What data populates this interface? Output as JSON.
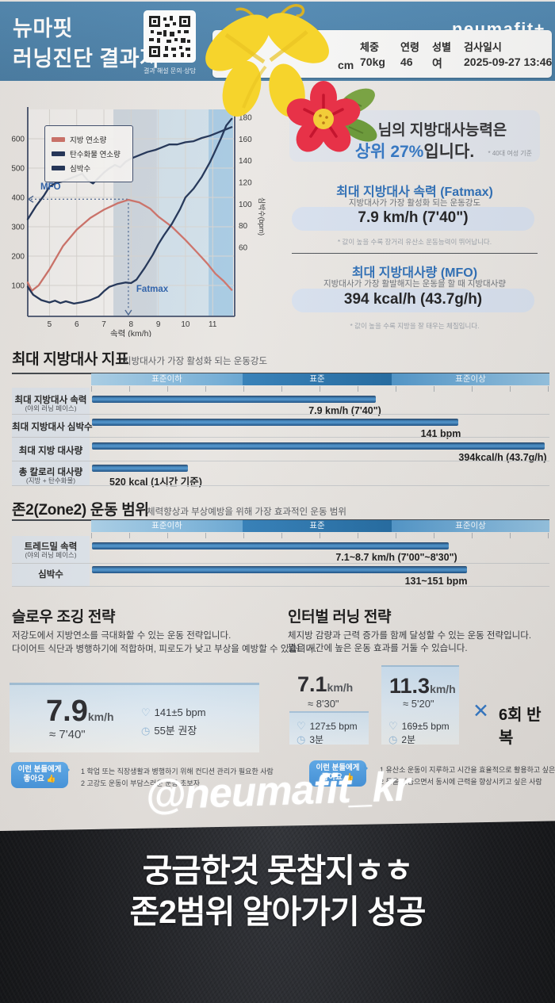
{
  "story": {
    "handle_overlay": "@neumafit_kr",
    "caption_line1": "궁금한것 못참지ㅎㅎ",
    "caption_line2": "존2범위 알아가기 성공"
  },
  "icons": {
    "heart": "♡",
    "clock": "◷"
  },
  "report": {
    "header": {
      "title_line1": "뉴마핏",
      "title_line2": "러닝진단 결과지",
      "qr_caption": "결과 해설 문의·상담",
      "logo": "neumafit+",
      "info": {
        "height_fragment": "cm",
        "cols": [
          {
            "label": "체중",
            "value": "70kg"
          },
          {
            "label": "연령",
            "value": "46"
          },
          {
            "label": "성별",
            "value": "여"
          },
          {
            "label": "검사일시",
            "value": "2025-09-27 13:46"
          }
        ]
      }
    },
    "summary": {
      "line1_suffix": "님의 지방대사능력은",
      "line2_highlight": "상위 27%",
      "line2_suffix": "입니다.",
      "note": "* 40대 여성 기준",
      "fatmax": {
        "title": "최대 지방대사 속력 (Fatmax)",
        "subtitle": "지방대사가 가장 활성화 되는 운동강도",
        "value": "7.9 km/h (7'40\")",
        "footnote": "* 값이 높을 수록 장거리 유산소 운동능력이 뛰어납니다."
      },
      "mfo": {
        "title": "최대 지방대사량 (MFO)",
        "subtitle": "지방대사가 가장 활발해지는 운동을 할 때 지방대사량",
        "value": "394 kcal/h  (43.7g/h)",
        "footnote": "* 값이 높을 수록 지방을 잘 태우는 체질입니다."
      }
    },
    "metrics_section": {
      "title": "최대 지방대사 지표",
      "subtitle": "지방대사가 가장 활성화 되는 운동강도",
      "scale": [
        "표준이하",
        "표준",
        "표준이상"
      ],
      "rows": [
        {
          "label": "최대 지방대사 속력",
          "sublabel": "(야외 러닝 페이스)",
          "value": "7.9 km/h (7'40\")",
          "pct": 62
        },
        {
          "label": "최대 지방대사 심박수",
          "sublabel": "",
          "value": "141 bpm",
          "pct": 80
        },
        {
          "label": "최대 지방 대사량",
          "sublabel": "",
          "value": "394kcal/h (43.7g/h)",
          "pct": 99
        },
        {
          "label": "총 칼로리 대사량",
          "sublabel": "(지방 + 탄수화물)",
          "value_bold": "520 kcal",
          "value_norm": "  (1시간 기준)",
          "pct": 21
        }
      ]
    },
    "zone2_section": {
      "title": "존2(Zone2) 운동 범위",
      "subtitle": "체력향상과 부상예방을 위해 가장 효과적인 운동 범위",
      "scale": [
        "표준이하",
        "표준",
        "표준이상"
      ],
      "rows": [
        {
          "label": "트레드밀 속력",
          "sublabel": "(야외 러닝 페이스)",
          "value": "7.1~8.7 km/h (7'00\"~8'30\")",
          "pct": 78
        },
        {
          "label": "심박수",
          "sublabel": "",
          "value": "131~151 bpm",
          "pct": 82
        }
      ]
    },
    "slow_jog": {
      "title": "슬로우 조깅 전략",
      "desc1": "저강도에서 지방연소를 극대화할 수 있는 운동 전략입니다.",
      "desc2": "다이어트 식단과 병행하기에 적합하며, 피로도가 낮고 부상을 예방할 수 있습니다.",
      "speed": "7.9",
      "speed_unit": "km/h",
      "pace": "≈ 7'40\"",
      "hr": "141±5 bpm",
      "duration": "55분 권장",
      "bubble_line1": "이런 분들에게",
      "bubble_line2": "좋아요 👍",
      "tips": [
        "1  학업 또는 직장생활과 병행하기 위해 컨디션 관리가 필요한 사람",
        "2  고강도 운동이 부담스러운 운동 초보자"
      ]
    },
    "interval": {
      "title": "인터벌 러닝 전략",
      "desc1": "체지방 감량과 근력 증가를 함께 달성할 수 있는 운동 전략입니다.",
      "desc2": "짧은 시간에 높은 운동 효과를 거둘 수 있습니다.",
      "card1": {
        "speed": "7.1",
        "unit": "km/h",
        "pace": "≈ 8'30\"",
        "hr": "127±5 bpm",
        "duration": "3분"
      },
      "card2": {
        "speed": "11.3",
        "unit": "km/h",
        "pace": "≈ 5'20\"",
        "hr": "169±5 bpm",
        "duration": "2분"
      },
      "repeat_x": "✕",
      "repeat": "6회 반복",
      "bubble_line1": "이런 분들에게",
      "bubble_line2": "좋아요 👍",
      "tips": [
        "1  유산소 운동이 지루하고 시간을 효율적으로 활용하고 싶은 사람",
        "2  몸을 다듬으면서 동시에 근력을 향상시키고 싶은 사람"
      ]
    }
  },
  "chart_data": {
    "type": "line",
    "xlabel": "속력 (km/h)",
    "right_ylabel": "심박수(bpm)",
    "x_range": [
      4.2,
      11.75
    ],
    "left_ylim": [
      0,
      700
    ],
    "right_ylim": [
      0,
      190
    ],
    "left_ticks": [
      600,
      500,
      400,
      300,
      200,
      100
    ],
    "right_ticks": [
      180,
      160,
      140,
      120,
      100,
      80,
      60
    ],
    "x_ticks": [
      5,
      6,
      7,
      8,
      9,
      10,
      11
    ],
    "zones": [
      {
        "from": 7.35,
        "to": 8.95,
        "color": "#ccd4dc"
      },
      {
        "from": 8.95,
        "to": 10.85,
        "color": "#d0dfe9"
      },
      {
        "from": 10.85,
        "to": 11.75,
        "color": "#a6c9e2"
      }
    ],
    "markers": {
      "fatmax_speed": 7.9,
      "mfo_value": 394,
      "mfo_label": "MFO",
      "fatmax_label": "Fatmax"
    },
    "series": [
      {
        "name": "지방 연소량",
        "axis": "left",
        "color": "#cc6f66",
        "points": [
          [
            4.2,
            110
          ],
          [
            4.35,
            82
          ],
          [
            4.6,
            100
          ],
          [
            5,
            155
          ],
          [
            5.5,
            235
          ],
          [
            6,
            290
          ],
          [
            6.5,
            330
          ],
          [
            7,
            358
          ],
          [
            7.5,
            380
          ],
          [
            7.9,
            392
          ],
          [
            8.3,
            383
          ],
          [
            8.7,
            362
          ],
          [
            9,
            335
          ],
          [
            9.5,
            300
          ],
          [
            10,
            255
          ],
          [
            10.4,
            215
          ],
          [
            10.8,
            175
          ],
          [
            11.1,
            140
          ],
          [
            11.4,
            115
          ],
          [
            11.7,
            85
          ]
        ]
      },
      {
        "name": "탄수화물 연소량",
        "axis": "left",
        "color": "#1d3054",
        "points": [
          [
            4.2,
            95
          ],
          [
            4.4,
            68
          ],
          [
            4.7,
            50
          ],
          [
            5,
            42
          ],
          [
            5.2,
            48
          ],
          [
            5.4,
            40
          ],
          [
            5.6,
            46
          ],
          [
            5.9,
            38
          ],
          [
            6.2,
            43
          ],
          [
            6.5,
            50
          ],
          [
            6.8,
            62
          ],
          [
            7,
            80
          ],
          [
            7.2,
            95
          ],
          [
            7.5,
            105
          ],
          [
            7.8,
            110
          ],
          [
            8,
            108
          ],
          [
            8.2,
            120
          ],
          [
            8.5,
            160
          ],
          [
            8.8,
            205
          ],
          [
            9,
            240
          ],
          [
            9.2,
            270
          ],
          [
            9.5,
            310
          ],
          [
            9.8,
            360
          ],
          [
            10,
            400
          ],
          [
            10.3,
            430
          ],
          [
            10.6,
            470
          ],
          [
            10.9,
            520
          ],
          [
            11.1,
            560
          ],
          [
            11.3,
            600
          ],
          [
            11.5,
            645
          ],
          [
            11.7,
            668
          ]
        ]
      },
      {
        "name": "심박수",
        "axis": "right",
        "color": "#1d3054",
        "points": [
          [
            4.2,
            86
          ],
          [
            4.5,
            98
          ],
          [
            4.8,
            108
          ],
          [
            5,
            116
          ],
          [
            5.2,
            119
          ],
          [
            5.5,
            121
          ],
          [
            5.8,
            124
          ],
          [
            6,
            126
          ],
          [
            6.2,
            128
          ],
          [
            6.4,
            122
          ],
          [
            6.6,
            119
          ],
          [
            6.8,
            124
          ],
          [
            7,
            129
          ],
          [
            7.2,
            133
          ],
          [
            7.4,
            136
          ],
          [
            7.6,
            134
          ],
          [
            7.8,
            139
          ],
          [
            8,
            142
          ],
          [
            8.3,
            145
          ],
          [
            8.6,
            148
          ],
          [
            8.9,
            150
          ],
          [
            9.1,
            152
          ],
          [
            9.4,
            155
          ],
          [
            9.7,
            155
          ],
          [
            10,
            157
          ],
          [
            10.3,
            158
          ],
          [
            10.6,
            161
          ],
          [
            10.9,
            163
          ],
          [
            11.2,
            166
          ],
          [
            11.5,
            169
          ],
          [
            11.7,
            171
          ]
        ]
      }
    ]
  }
}
